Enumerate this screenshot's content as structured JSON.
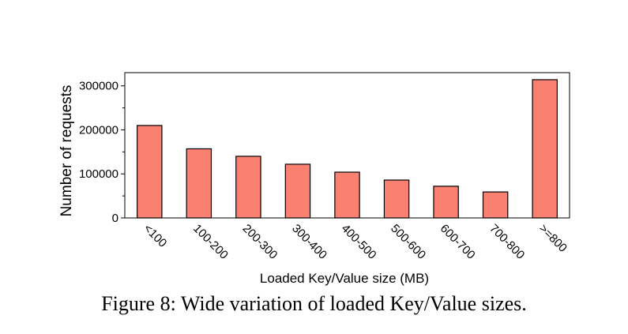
{
  "caption": "Figure 8: Wide variation of loaded Key/Value sizes.",
  "chart_data": {
    "type": "bar",
    "title": "",
    "xlabel": "Loaded Key/Value size (MB)",
    "ylabel": "Number of requests",
    "categories": [
      "<100",
      "100-200",
      "200-300",
      "300-400",
      "400-500",
      "500-600",
      "600-700",
      "700-800",
      ">=800"
    ],
    "values": [
      210000,
      157000,
      140000,
      122000,
      104000,
      86000,
      72000,
      59000,
      314000
    ],
    "ylim": [
      0,
      330000
    ],
    "yticks": [
      0,
      100000,
      200000,
      300000
    ],
    "ytick_labels": [
      "0",
      "100000",
      "200000",
      "300000"
    ],
    "bar_color": "#fa8072",
    "bar_edge_color": "#000000",
    "grid": false,
    "legend": "none"
  }
}
